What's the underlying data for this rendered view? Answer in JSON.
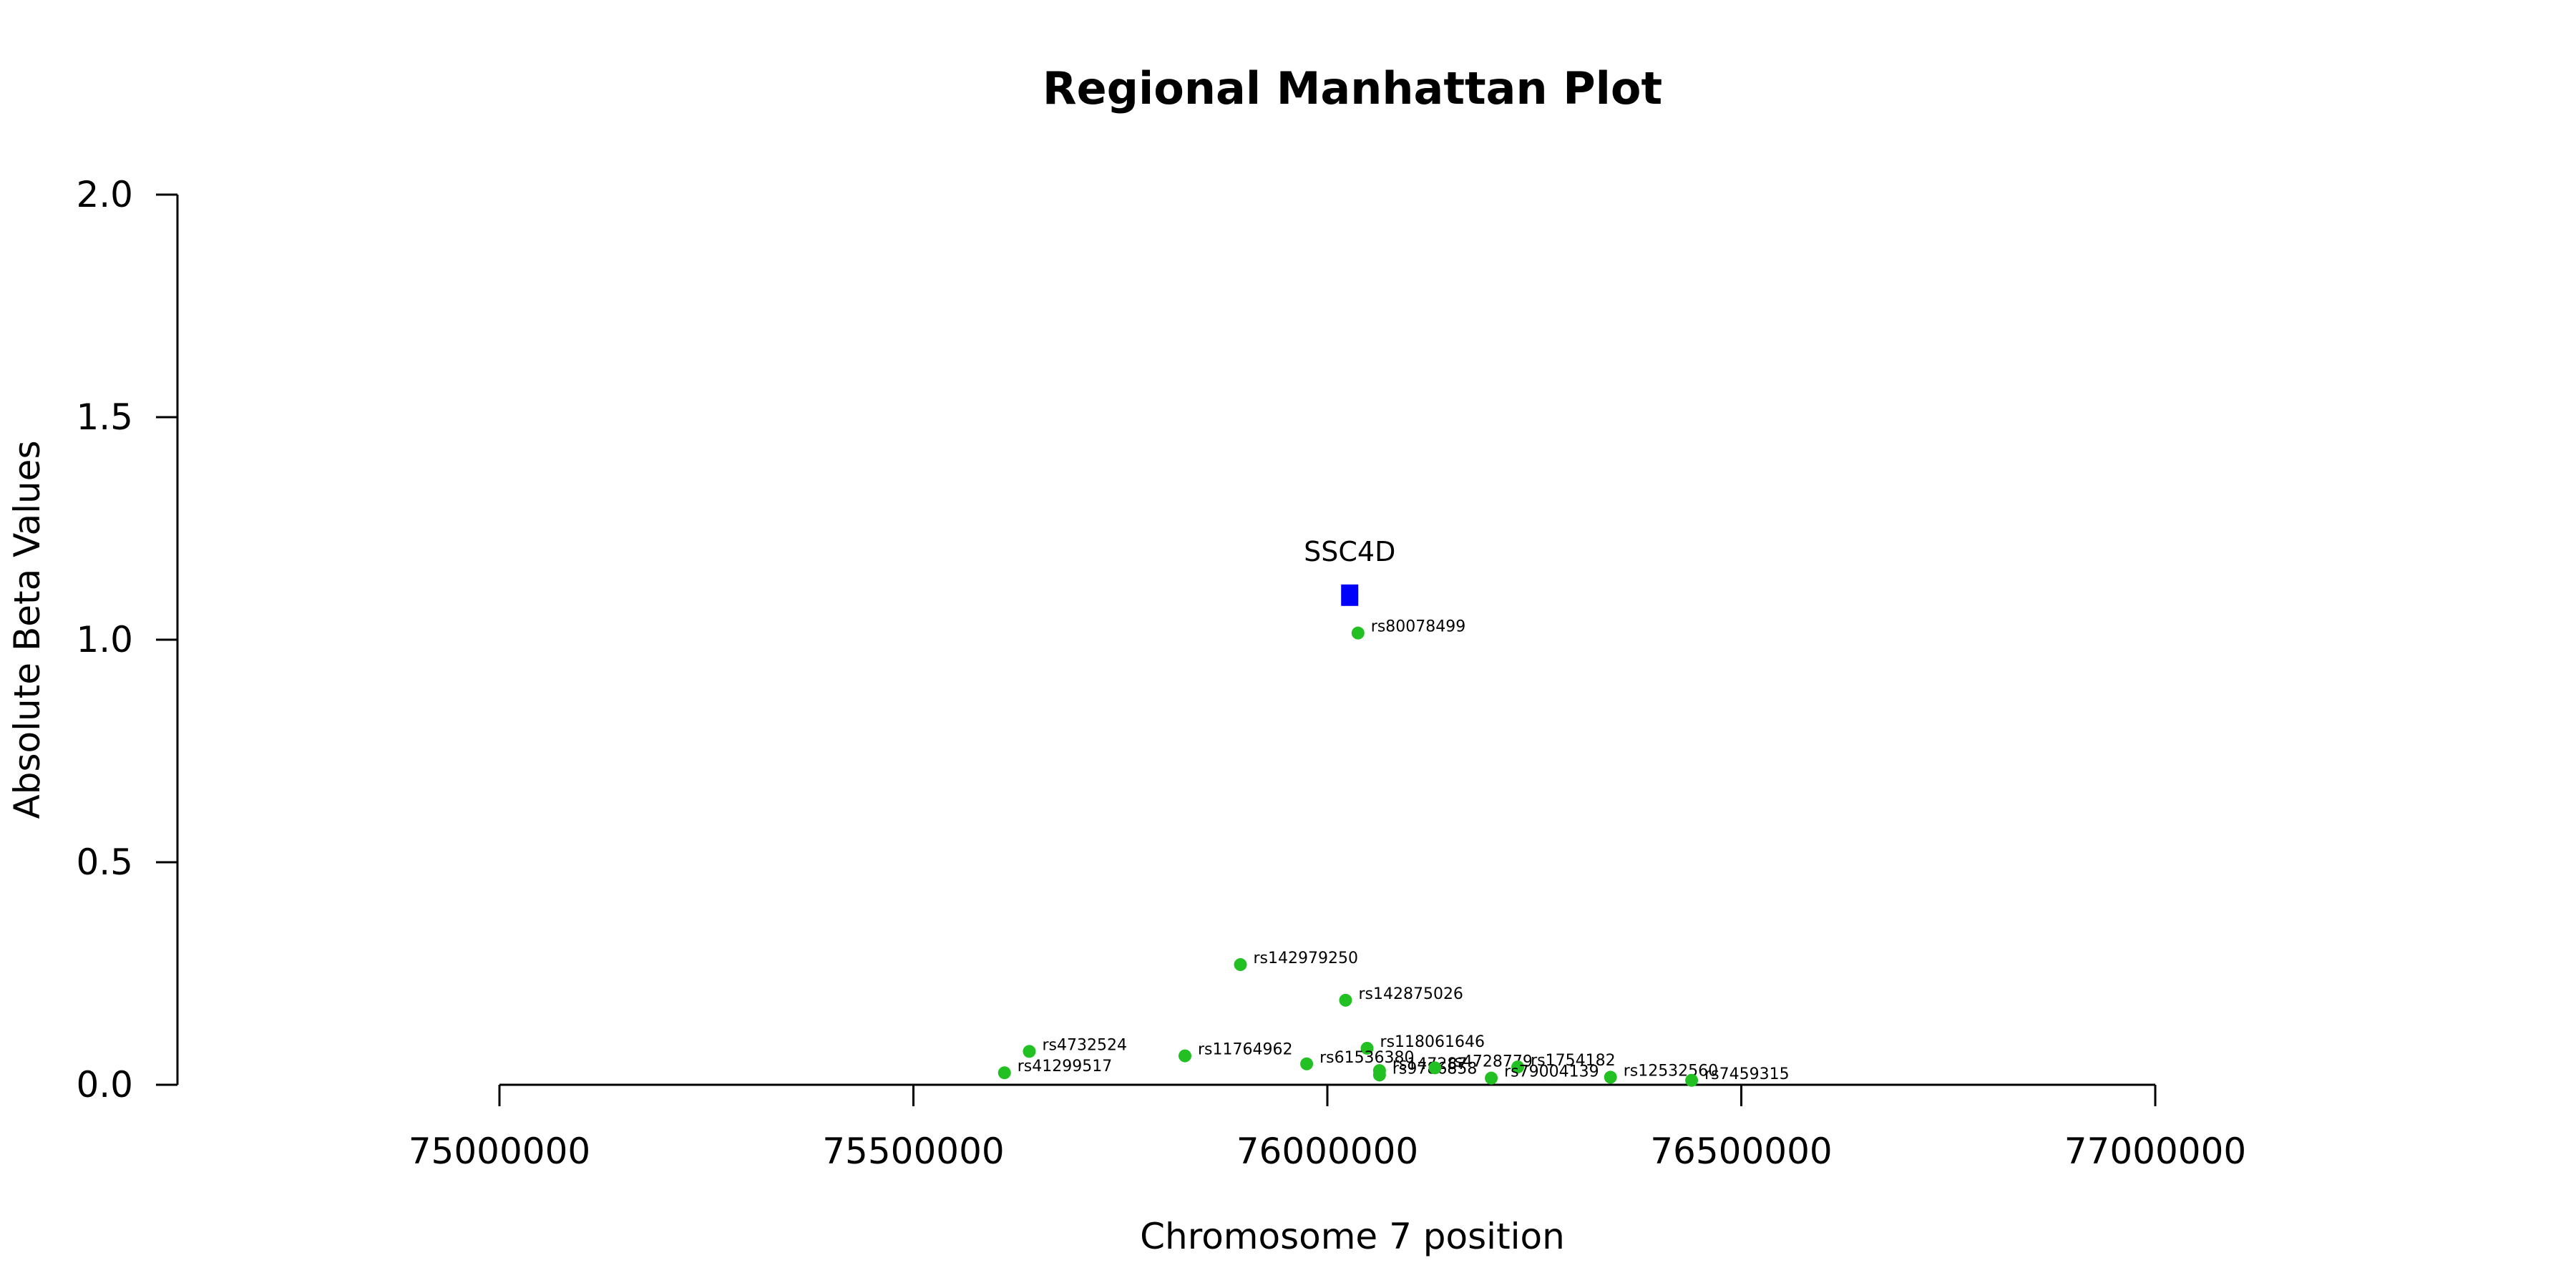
{
  "chart_data": {
    "type": "scatter",
    "title": "Regional Manhattan Plot",
    "xlabel": "Chromosome 7 position",
    "ylabel": "Absolute Beta Values",
    "xlim": [
      75000000,
      77000000
    ],
    "ylim": [
      0,
      2
    ],
    "x_ticks": [
      75000000,
      75500000,
      76000000,
      76500000,
      77000000
    ],
    "x_tick_labels": [
      "75000000",
      "75500000",
      "76000000",
      "76500000",
      "77000000"
    ],
    "y_ticks": [
      0,
      0.5,
      1,
      1.5,
      2
    ],
    "y_tick_labels": [
      "0.0",
      "0.5",
      "1.0",
      "1.5",
      "2.0"
    ],
    "grid": false,
    "colors": {
      "snp": "#22c022",
      "gene": "#0000ff",
      "axis": "#000000"
    },
    "gene": {
      "label": "SSC4D",
      "x": 76027000,
      "y": 1.1
    },
    "points": [
      {
        "label": "rs80078499",
        "x": 76037000,
        "y": 1.015
      },
      {
        "label": "rs142979250",
        "x": 75895000,
        "y": 0.27
      },
      {
        "label": "rs142875026",
        "x": 76022000,
        "y": 0.19
      },
      {
        "label": "rs4732524",
        "x": 75640000,
        "y": 0.075
      },
      {
        "label": "rs41299517",
        "x": 75610000,
        "y": 0.027
      },
      {
        "label": "rs11764962",
        "x": 75828000,
        "y": 0.065
      },
      {
        "label": "rs118061646",
        "x": 76048000,
        "y": 0.082
      },
      {
        "label": "rs61536380",
        "x": 75975000,
        "y": 0.047
      },
      {
        "label": "rs147287",
        "x": 76063000,
        "y": 0.032
      },
      {
        "label": "rs9786858",
        "x": 76063000,
        "y": 0.022
      },
      {
        "label": "rs4728779",
        "x": 76130000,
        "y": 0.038
      },
      {
        "label": "rs1754182",
        "x": 76230000,
        "y": 0.04
      },
      {
        "label": "rs79004139",
        "x": 76198000,
        "y": 0.015
      },
      {
        "label": "rs12532560",
        "x": 76342000,
        "y": 0.017
      },
      {
        "label": "rs7459315",
        "x": 76440000,
        "y": 0.01
      }
    ]
  }
}
